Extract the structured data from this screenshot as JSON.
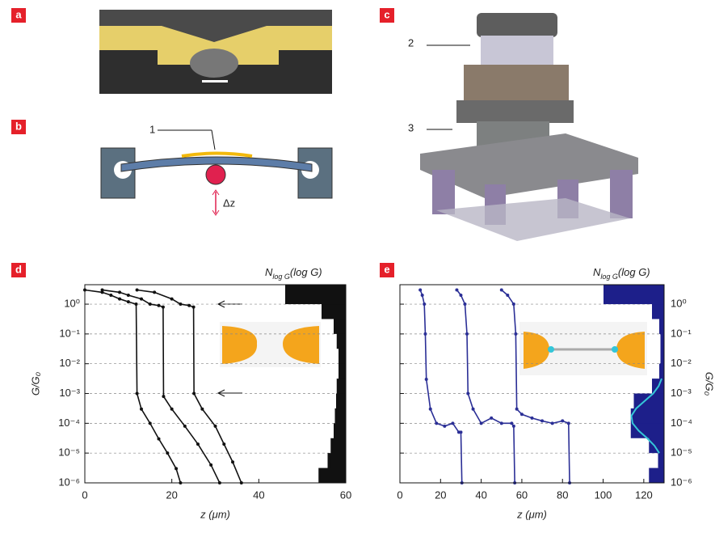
{
  "panels": {
    "labels": [
      "a",
      "b",
      "c",
      "d",
      "e"
    ],
    "b_callout": "1",
    "b_displacement": "Δz",
    "c_callouts": [
      "2",
      "3"
    ]
  },
  "chart_data": [
    {
      "type": "line",
      "log_scale": true,
      "grid": true,
      "x_label": "z (μm)",
      "y_label": "G/G₀",
      "hist_label": "N",
      "hist_label_sub": "log G",
      "hist_label_rest": "(log G)",
      "color": "#111111",
      "xlim": [
        0,
        60
      ],
      "xticks": [
        0,
        20,
        40,
        60
      ],
      "ylim": [
        1e-06,
        4.5
      ],
      "yticks": [
        {
          "value": 1e-06,
          "label": "10⁻⁶"
        },
        {
          "value": 1e-05,
          "label": "10⁻⁵"
        },
        {
          "value": 0.0001,
          "label": "10⁻⁴"
        },
        {
          "value": 0.001,
          "label": "10⁻³"
        },
        {
          "value": 0.01,
          "label": "10⁻²"
        },
        {
          "value": 0.1,
          "label": "10⁻¹"
        },
        {
          "value": 1,
          "label": "10⁰"
        }
      ],
      "series": [
        {
          "x": [
            0,
            4,
            6,
            8,
            10,
            11.8,
            12,
            13,
            15,
            17,
            19,
            21,
            22
          ],
          "values": [
            3,
            2.5,
            2,
            1.5,
            1.2,
            1,
            0.001,
            0.0003,
            0.0001,
            3e-05,
            1e-05,
            3e-06,
            1e-06
          ]
        },
        {
          "x": [
            4,
            8,
            10,
            13,
            15,
            17,
            18,
            18.1,
            20,
            23,
            26,
            29,
            31
          ],
          "values": [
            3,
            2.5,
            2,
            1.5,
            1,
            0.9,
            0.8,
            0.0008,
            0.0003,
            8e-05,
            2e-05,
            4e-06,
            1e-06
          ]
        },
        {
          "x": [
            12,
            16,
            20,
            22,
            24,
            25,
            25.1,
            27,
            30,
            32,
            34,
            36
          ],
          "values": [
            3,
            2.5,
            1.5,
            1,
            0.9,
            0.8,
            0.001,
            0.0003,
            8e-05,
            2e-05,
            5e-06,
            1e-06
          ]
        }
      ],
      "histogram": {
        "log_g": [
          -6,
          -5.5,
          -5,
          -4.5,
          -4,
          -3.5,
          -3,
          -2.5,
          -2,
          -1.5,
          -1,
          -0.5,
          0,
          0.5
        ],
        "counts": [
          45,
          30,
          25,
          20,
          18,
          16,
          15,
          12,
          12,
          12,
          15,
          20,
          40,
          100
        ],
        "color": "#111111"
      }
    },
    {
      "type": "line",
      "log_scale": true,
      "grid": true,
      "x_label": "z (μm)",
      "y_label": "G/G₀",
      "hist_label": "N",
      "hist_label_sub": "log G",
      "hist_label_rest": "(log G)",
      "color": "#2b2f96",
      "xlim": [
        0,
        130
      ],
      "xticks": [
        0,
        20,
        40,
        60,
        80,
        100,
        120
      ],
      "ylim": [
        1e-06,
        4.5
      ],
      "y2ticks": [
        {
          "value": 1e-06,
          "label": "10⁻⁶"
        },
        {
          "value": 1e-05,
          "label": "10⁻⁵"
        },
        {
          "value": 0.0001,
          "label": "10⁻⁴"
        },
        {
          "value": 0.001,
          "label": "10⁻³"
        },
        {
          "value": 0.01,
          "label": "10⁻²"
        },
        {
          "value": 0.1,
          "label": "10⁻¹"
        },
        {
          "value": 1,
          "label": "10⁰"
        }
      ],
      "series": [
        {
          "x": [
            10,
            11,
            12,
            12.5,
            13,
            15,
            18,
            22,
            26,
            29,
            30,
            30.5
          ],
          "values": [
            3,
            2,
            1,
            0.1,
            0.003,
            0.0003,
            0.0001,
            8e-05,
            0.0001,
            5e-05,
            5e-05,
            1e-06
          ]
        },
        {
          "x": [
            28,
            30,
            32,
            33,
            33.5,
            36,
            40,
            45,
            50,
            55,
            56,
            56.5
          ],
          "values": [
            3,
            2,
            1,
            0.1,
            0.001,
            0.0003,
            0.0001,
            0.00015,
            0.0001,
            0.0001,
            8e-05,
            1e-06
          ]
        },
        {
          "x": [
            50,
            53,
            56,
            57,
            57.5,
            60,
            65,
            70,
            75,
            80,
            83,
            83.5
          ],
          "values": [
            3,
            2,
            1,
            0.1,
            0.0003,
            0.0002,
            0.00015,
            0.00012,
            0.0001,
            0.00012,
            0.0001,
            1e-06
          ]
        }
      ],
      "histogram": {
        "log_g": [
          -6,
          -5.5,
          -5,
          -4.5,
          -4,
          -3.5,
          -3,
          -2.5,
          -2,
          -1.5,
          -1,
          -0.5,
          0,
          0.5
        ],
        "counts": [
          25,
          8,
          10,
          25,
          55,
          50,
          20,
          8,
          6,
          6,
          6,
          8,
          20,
          100
        ],
        "color": "#1d1f8a"
      },
      "fit": {
        "log_g": [
          -5,
          -4.75,
          -4.5,
          -4.25,
          -4,
          -3.75,
          -3.5,
          -3.25,
          -3,
          -2.75,
          -2.5
        ],
        "counts": [
          8,
          16,
          28,
          42,
          52,
          54,
          46,
          32,
          18,
          9,
          4
        ],
        "color": "#34c6d8"
      }
    }
  ]
}
